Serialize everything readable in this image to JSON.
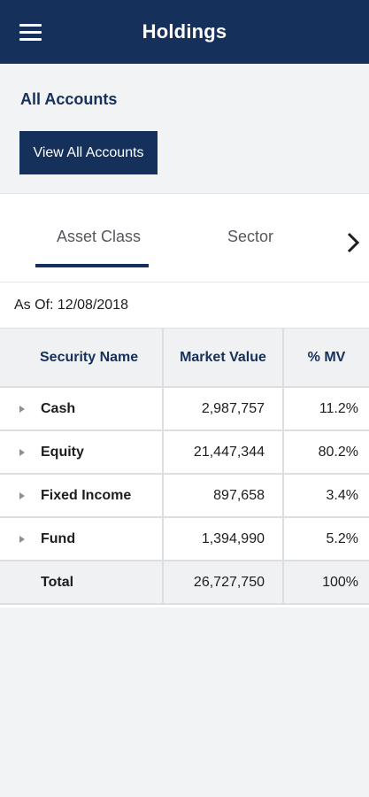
{
  "header": {
    "title": "Holdings",
    "menu_icon": "hamburger-menu-icon"
  },
  "accounts": {
    "title": "All Accounts",
    "button_label": "View All Accounts"
  },
  "tabs": [
    {
      "label": "Asset Class",
      "active": true
    },
    {
      "label": "Sector",
      "active": false
    }
  ],
  "as_of": "As Of: 12/08/2018",
  "table": {
    "columns": [
      "Security Name",
      "Market Value",
      "% MV"
    ],
    "rows": [
      {
        "name": "Cash",
        "market_value": "2,987,757",
        "pct_mv": "11.2%"
      },
      {
        "name": "Equity",
        "market_value": "21,447,344",
        "pct_mv": "80.2%"
      },
      {
        "name": "Fixed Income",
        "market_value": "897,658",
        "pct_mv": "3.4%"
      },
      {
        "name": "Fund",
        "market_value": "1,394,990",
        "pct_mv": "5.2%"
      }
    ],
    "total": {
      "name": "Total",
      "market_value": "26,727,750",
      "pct_mv": "100%"
    }
  },
  "colors": {
    "brand": "#15305a",
    "background": "#f2f3f4",
    "header_row": "#f0f1f3"
  }
}
